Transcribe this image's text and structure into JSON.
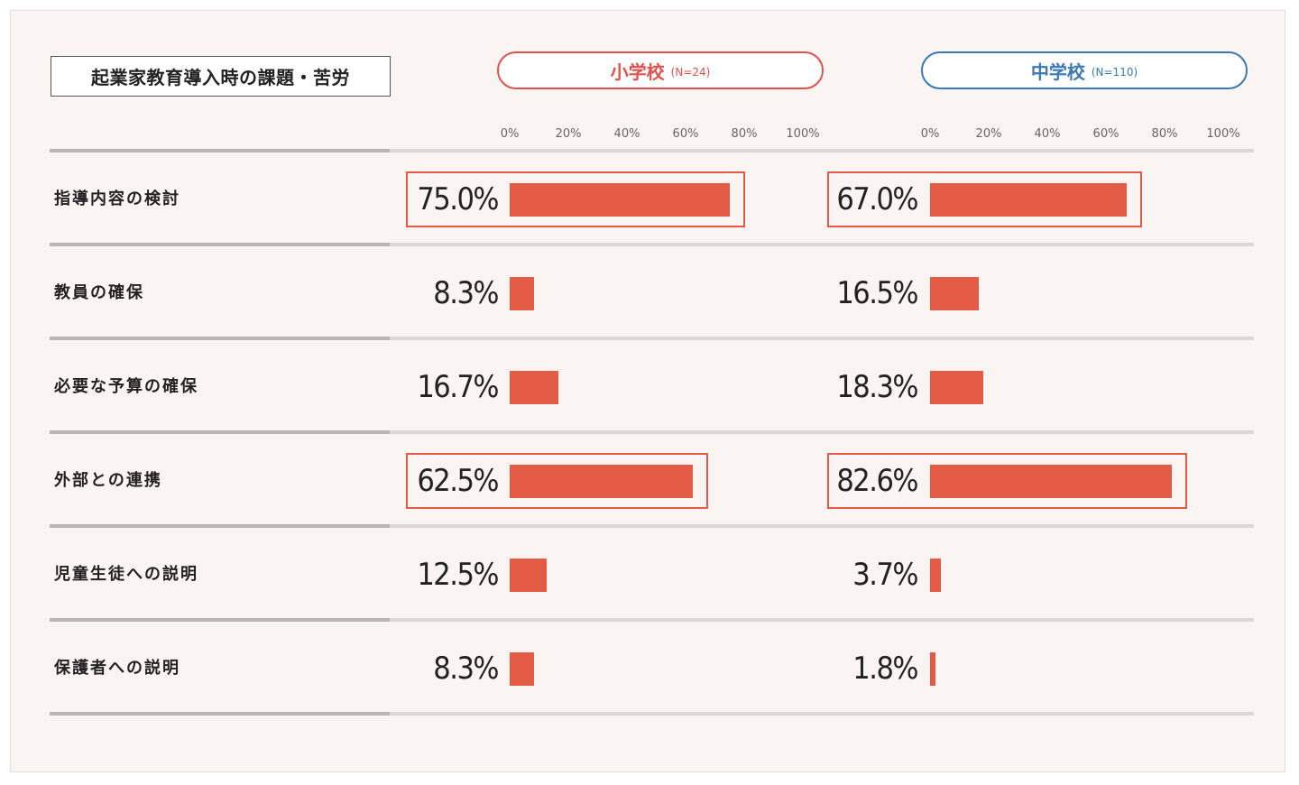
{
  "chart_data": {
    "type": "bar",
    "orientation": "horizontal",
    "title": "起業家教育導入時の課題・苦労",
    "categories": [
      "指導内容の検討",
      "教員の確保",
      "必要な予算の確保",
      "外部との連携",
      "児童生徒への説明",
      "保護者への説明"
    ],
    "series": [
      {
        "name": "小学校",
        "n_label": "(N=24)",
        "values": [
          75.0,
          8.3,
          16.7,
          62.5,
          12.5,
          8.3
        ],
        "value_labels": [
          "75.0%",
          "8.3%",
          "16.7%",
          "62.5%",
          "12.5%",
          "8.3%"
        ],
        "highlighted": [
          0,
          3
        ]
      },
      {
        "name": "中学校",
        "n_label": "(N=110)",
        "values": [
          67.0,
          16.5,
          18.3,
          82.6,
          3.7,
          1.8
        ],
        "value_labels": [
          "67.0%",
          "16.5%",
          "18.3%",
          "82.6%",
          "3.7%",
          "1.8%"
        ],
        "highlighted": [
          0,
          3
        ]
      }
    ],
    "xlim": [
      0,
      100
    ],
    "ticks": [
      "0%",
      "20%",
      "40%",
      "60%",
      "80%",
      "100%"
    ],
    "colors": {
      "bar": "#e35a45",
      "elementary": "#e3504a",
      "junior_high": "#3a79b5",
      "background": "#faf4f2"
    }
  }
}
